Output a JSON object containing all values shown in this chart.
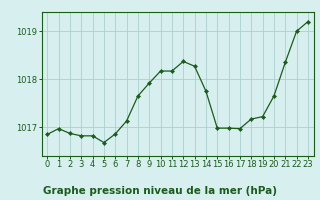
{
  "x": [
    0,
    1,
    2,
    3,
    4,
    5,
    6,
    7,
    8,
    9,
    10,
    11,
    12,
    13,
    14,
    15,
    16,
    17,
    18,
    19,
    20,
    21,
    22,
    23
  ],
  "y": [
    1016.85,
    1016.97,
    1016.87,
    1016.82,
    1016.82,
    1016.68,
    1016.86,
    1017.13,
    1017.65,
    1017.92,
    1018.17,
    1018.17,
    1018.37,
    1018.27,
    1017.75,
    1016.98,
    1016.98,
    1016.97,
    1017.17,
    1017.22,
    1017.65,
    1018.35,
    1019.0,
    1019.2
  ],
  "line_color": "#1a5c1a",
  "marker_color": "#1a5c1a",
  "bg_color": "#d8eff0",
  "grid_color": "#aad0d0",
  "title": "Graphe pression niveau de la mer (hPa)",
  "ylim": [
    1016.4,
    1019.4
  ],
  "xlim": [
    -0.5,
    23.5
  ],
  "yticks": [
    1017,
    1018,
    1019
  ],
  "xticks": [
    0,
    1,
    2,
    3,
    4,
    5,
    6,
    7,
    8,
    9,
    10,
    11,
    12,
    13,
    14,
    15,
    16,
    17,
    18,
    19,
    20,
    21,
    22,
    23
  ],
  "title_fontsize": 7.5,
  "tick_fontsize": 6.0
}
